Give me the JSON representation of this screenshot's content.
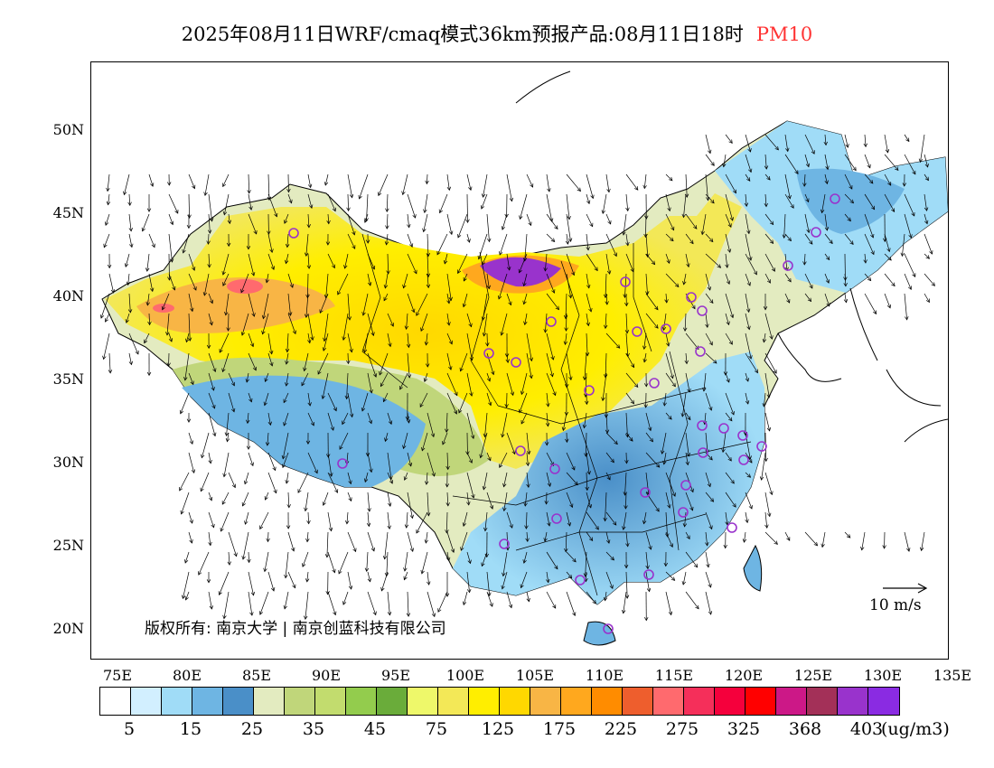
{
  "title": {
    "main": "2025年08月11日WRF/cmaq模式36km预报产品:08月11日18时",
    "pollutant": "PM10",
    "pollutant_color": "#ff3333"
  },
  "map": {
    "lat_labels": [
      "50N",
      "45N",
      "40N",
      "35N",
      "30N",
      "25N",
      "20N"
    ],
    "lon_labels": [
      "75E",
      "80E",
      "85E",
      "90E",
      "95E",
      "100E",
      "105E",
      "110E",
      "115E",
      "120E",
      "125E",
      "130E",
      "135E"
    ],
    "copyright": "版权所有: 南京大学 | 南京创蓝科技有限公司",
    "wind_scale_label": "10 m/s",
    "stations_color": "#9933cc",
    "coastline_color": "#000000"
  },
  "colorbar": {
    "colors": [
      "#ffffff",
      "#d2efff",
      "#a0dcf7",
      "#6eb5e3",
      "#4a8fc8",
      "#e3ebc0",
      "#c0d67a",
      "#c2dc6e",
      "#93cc4d",
      "#6aac3a",
      "#eef86a",
      "#f3e857",
      "#ffee00",
      "#ffd800",
      "#f8b545",
      "#ffa81e",
      "#ff8c00",
      "#ee5e2d",
      "#ff6a6e",
      "#f52f5a",
      "#f5003c",
      "#ff0000",
      "#cc1887",
      "#a33058",
      "#9933cc",
      "#8a2be2"
    ],
    "labels": [
      "5",
      "15",
      "25",
      "35",
      "45",
      "75",
      "125",
      "175",
      "225",
      "275",
      "325",
      "368",
      "403"
    ],
    "unit": "(ug/m3)"
  }
}
